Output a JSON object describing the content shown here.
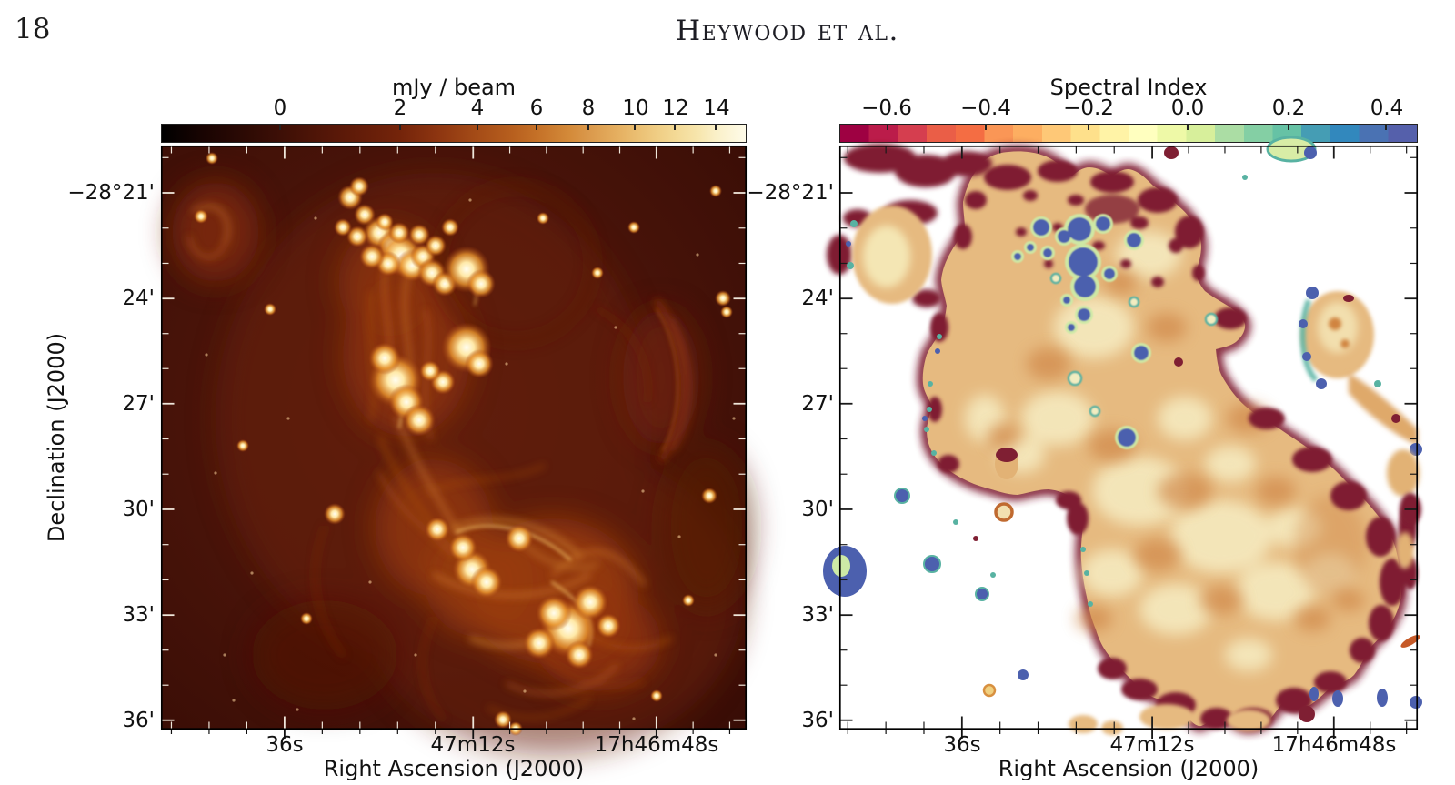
{
  "page": {
    "number": "18",
    "running_head": "Heywood et al."
  },
  "left_panel": {
    "name": "radio continuum intensity map",
    "colorbar": {
      "title": "mJy / beam",
      "ticks": [
        {
          "label": "0",
          "f": 0.203
        },
        {
          "label": "2",
          "f": 0.408
        },
        {
          "label": "4",
          "f": 0.54
        },
        {
          "label": "6",
          "f": 0.641
        },
        {
          "label": "8",
          "f": 0.73
        },
        {
          "label": "10",
          "f": 0.81
        },
        {
          "label": "12",
          "f": 0.879
        },
        {
          "label": "14",
          "f": 0.949
        }
      ]
    },
    "x_axis": {
      "label": "Right Ascension (J2000)",
      "ticks": [
        {
          "label": "36s",
          "f": 0.211
        },
        {
          "label": "47m12s",
          "f": 0.533
        },
        {
          "label": "17h46m48s",
          "f": 0.846
        }
      ]
    },
    "y_axis": {
      "label": "Declination (J2000)",
      "ticks": [
        {
          "label": "−28°21'",
          "f": 0.081
        },
        {
          "label": "24'",
          "f": 0.262
        },
        {
          "label": "27'",
          "f": 0.442
        },
        {
          "label": "30'",
          "f": 0.623
        },
        {
          "label": "33'",
          "f": 0.804
        },
        {
          "label": "36'",
          "f": 0.984
        }
      ]
    }
  },
  "right_panel": {
    "name": "spectral index map",
    "colorbar": {
      "title": "Spectral Index",
      "ticks": [
        {
          "label": "−0.6",
          "f": 0.082
        },
        {
          "label": "−0.4",
          "f": 0.253
        },
        {
          "label": "−0.2",
          "f": 0.431
        },
        {
          "label": "0.0",
          "f": 0.602
        },
        {
          "label": "0.2",
          "f": 0.777
        },
        {
          "label": "0.4",
          "f": 0.947
        }
      ]
    },
    "x_axis": {
      "label": "Right Ascension (J2000)",
      "ticks": [
        {
          "label": "36s",
          "f": 0.212
        },
        {
          "label": "47m12s",
          "f": 0.541
        },
        {
          "label": "17h46m48s",
          "f": 0.855
        }
      ]
    },
    "y_axis": {
      "ticks": [
        {
          "label": "−28°21'",
          "f": 0.081
        },
        {
          "label": "24'",
          "f": 0.262
        },
        {
          "label": "27'",
          "f": 0.442
        },
        {
          "label": "30'",
          "f": 0.623
        },
        {
          "label": "33'",
          "f": 0.804
        },
        {
          "label": "36'",
          "f": 0.984
        }
      ]
    }
  },
  "colors": {
    "frame": "#000000",
    "hot_stops": [
      [
        0,
        "#000000"
      ],
      [
        0.07,
        "#190402"
      ],
      [
        0.14,
        "#2c0a04"
      ],
      [
        0.203,
        "#3d0f06"
      ],
      [
        0.3,
        "#591808"
      ],
      [
        0.408,
        "#74240a"
      ],
      [
        0.47,
        "#8c3410"
      ],
      [
        0.54,
        "#a54c17"
      ],
      [
        0.6,
        "#b75f1e"
      ],
      [
        0.641,
        "#c47027"
      ],
      [
        0.7,
        "#d48b3a"
      ],
      [
        0.73,
        "#da984b"
      ],
      [
        0.78,
        "#e5af60"
      ],
      [
        0.81,
        "#eabd70"
      ],
      [
        0.85,
        "#f0ce85"
      ],
      [
        0.879,
        "#f3d995"
      ],
      [
        0.92,
        "#f7e6ae"
      ],
      [
        0.949,
        "#faf0c8"
      ],
      [
        1,
        "#fefbe9"
      ]
    ],
    "spectral_segments": [
      "#9e0142",
      "#bb1c4a",
      "#d53e4f",
      "#ea5e47",
      "#f46d43",
      "#fa9656",
      "#fdae61",
      "#fec877",
      "#fee08b",
      "#fff3a6",
      "#ffffbf",
      "#eef9a7",
      "#d7ef9b",
      "#abdda4",
      "#84cfa4",
      "#66c2a5",
      "#459db4",
      "#3288bd",
      "#4a72b3",
      "#5560ab"
    ]
  },
  "chart_data": [
    {
      "type": "heatmap",
      "title": "mJy / beam",
      "colorbar_ticks": [
        0,
        2,
        4,
        6,
        8,
        10,
        12,
        14
      ],
      "colormap": "black-maroon-orange-yellow-white (afmhot-like, nonlinear stretch)",
      "xlabel": "Right Ascension (J2000)",
      "ylabel": "Declination (J2000)",
      "x_ticks": [
        "36s",
        "47m12s",
        "17h46m48s"
      ],
      "y_ticks": [
        "−28°21'",
        "24'",
        "27'",
        "30'",
        "33'",
        "36'"
      ],
      "content": "MeerKAT radio continuum image of Galactic centre region: dark red background, bright filamentary nebulosity running diagonally from a cluster of compact white sources at top-centre down to an intense knotted complex at bottom-centre-right; fuzzy blob at top-left; faint arc at mid-right"
    },
    {
      "type": "heatmap",
      "title": "Spectral Index",
      "colorbar_ticks": [
        -0.6,
        -0.4,
        -0.2,
        0.0,
        0.2,
        0.4
      ],
      "colormap": "Spectral (dark red → orange → pale yellow → green → blue)",
      "xlabel": "Right Ascension (J2000)",
      "ylabel": "Declination (J2000)",
      "x_ticks": [
        "36s",
        "47m12s",
        "17h46m48s"
      ],
      "y_ticks": [
        "−28°21'",
        "24'",
        "27'",
        "30'",
        "33'",
        "36'"
      ],
      "content": "Spectral index map over white background: large contiguous tan/orange region (α ≈ −0.3…−0.1) with mottled dark-maroon steep-spectrum edges; cluster of blue flat/inverted-spectrum compact sources near top; satellite blobs at top-left, right edge and bottom; scattered small blue/teal point sources"
    }
  ]
}
